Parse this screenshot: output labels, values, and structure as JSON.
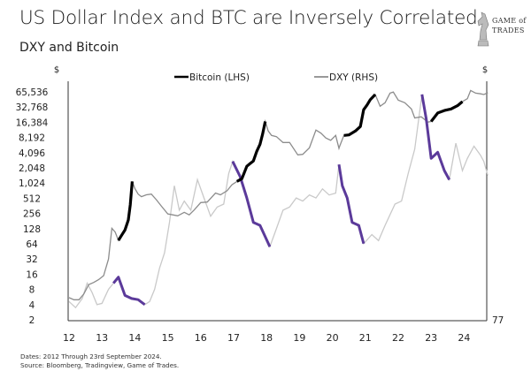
{
  "title": "US Dollar Index and BTC are Inversely Correlated",
  "subtitle": "DXY  and Bitcoin",
  "logo": {
    "line1": "GAME of",
    "line2": "TRADES"
  },
  "notes": [
    "Dates: 2012 Through 23rd September 2024.",
    "Source: Bloomberg, Tradingview, Game of Trades."
  ],
  "chart_data": {
    "type": "line",
    "left_axis": {
      "unit": "$",
      "scale": "log2",
      "ticks": [
        "2",
        "4",
        "8",
        "16",
        "32",
        "64",
        "128",
        "256",
        "512",
        "1,024",
        "2,048",
        "4,096",
        "8,192",
        "16,384",
        "32,768",
        "65,536"
      ],
      "tick_values": [
        2,
        4,
        8,
        16,
        32,
        64,
        128,
        256,
        512,
        1024,
        2048,
        4096,
        8192,
        16384,
        32768,
        65536
      ]
    },
    "right_axis": {
      "unit": "$",
      "ticks": [
        "77"
      ],
      "range": [
        77,
        115
      ]
    },
    "x_axis": {
      "ticks": [
        "12",
        "13",
        "14",
        "15",
        "16",
        "17",
        "18",
        "19",
        "20",
        "21",
        "22",
        "23",
        "24"
      ],
      "range": [
        2012,
        2024.73
      ]
    },
    "grid": false,
    "legend_placement": "top",
    "colors": {
      "bitcoin": "#8c8c8c",
      "bitcoin_highlight": "#000000",
      "dxy": "#c9c9c9",
      "dxy_highlight": "#5b3a9a"
    },
    "series": [
      {
        "name": "Bitcoin (LHS)",
        "axis": "left",
        "x": [
          2012.0,
          2012.15,
          2012.3,
          2012.45,
          2012.6,
          2012.75,
          2012.9,
          2013.05,
          2013.2,
          2013.3,
          2013.4,
          2013.5,
          2013.6,
          2013.7,
          2013.8,
          2013.86,
          2013.92,
          2014.0,
          2014.1,
          2014.2,
          2014.35,
          2014.5,
          2014.65,
          2014.8,
          2015.0,
          2015.15,
          2015.3,
          2015.5,
          2015.65,
          2015.8,
          2016.0,
          2016.2,
          2016.45,
          2016.6,
          2016.8,
          2016.95,
          2017.1,
          2017.25,
          2017.4,
          2017.5,
          2017.6,
          2017.7,
          2017.8,
          2017.88,
          2017.96,
          2018.05,
          2018.15,
          2018.3,
          2018.5,
          2018.7,
          2018.95,
          2019.1,
          2019.3,
          2019.5,
          2019.65,
          2019.8,
          2019.95,
          2020.1,
          2020.2,
          2020.22,
          2020.35,
          2020.5,
          2020.7,
          2020.85,
          2020.95,
          2021.05,
          2021.15,
          2021.3,
          2021.45,
          2021.6,
          2021.75,
          2021.85,
          2022.0,
          2022.2,
          2022.4,
          2022.5,
          2022.7,
          2022.9,
          2023.0,
          2023.2,
          2023.4,
          2023.6,
          2023.8,
          2023.95,
          2024.1,
          2024.2,
          2024.35,
          2024.5,
          2024.6,
          2024.72
        ],
        "values": [
          5.5,
          5,
          5,
          6.5,
          10,
          11,
          12.5,
          15,
          32,
          130,
          110,
          75,
          95,
          120,
          190,
          380,
          1100,
          800,
          620,
          550,
          600,
          620,
          480,
          360,
          250,
          240,
          230,
          270,
          240,
          300,
          420,
          430,
          650,
          600,
          720,
          950,
          1100,
          1250,
          2200,
          2500,
          2800,
          4300,
          6000,
          9500,
          17000,
          11000,
          9000,
          8500,
          6500,
          6500,
          3700,
          3800,
          5100,
          11500,
          10000,
          8000,
          7200,
          9000,
          5000,
          5500,
          9000,
          9200,
          11000,
          13500,
          29000,
          36000,
          46000,
          58000,
          34000,
          40000,
          62000,
          65000,
          45000,
          40000,
          30000,
          20000,
          21000,
          16500,
          17000,
          25000,
          28000,
          30000,
          35000,
          42000,
          48000,
          70000,
          62000,
          60000,
          58000,
          63000
        ]
      },
      {
        "name": "DXY (RHS)",
        "axis": "right",
        "x": [
          2012.0,
          2012.2,
          2012.4,
          2012.55,
          2012.7,
          2012.85,
          2013.0,
          2013.2,
          2013.35,
          2013.5,
          2013.7,
          2013.9,
          2014.1,
          2014.3,
          2014.45,
          2014.6,
          2014.75,
          2014.9,
          2015.05,
          2015.2,
          2015.35,
          2015.5,
          2015.7,
          2015.9,
          2016.1,
          2016.3,
          2016.5,
          2016.7,
          2016.85,
          2016.97,
          2017.2,
          2017.4,
          2017.6,
          2017.8,
          2018.1,
          2018.3,
          2018.5,
          2018.7,
          2018.9,
          2019.1,
          2019.3,
          2019.5,
          2019.7,
          2019.9,
          2020.1,
          2020.2,
          2020.3,
          2020.45,
          2020.6,
          2020.8,
          2020.95,
          2021.2,
          2021.4,
          2021.6,
          2021.9,
          2022.1,
          2022.3,
          2022.5,
          2022.72,
          2022.85,
          2023.0,
          2023.2,
          2023.4,
          2023.55,
          2023.75,
          2023.95,
          2024.1,
          2024.3,
          2024.5,
          2024.6,
          2024.72
        ],
        "values": [
          80,
          79,
          80.5,
          83,
          81.5,
          79.5,
          79.7,
          82,
          83,
          84,
          81,
          80.5,
          80.3,
          79.5,
          80,
          82,
          85.5,
          88,
          93,
          99,
          95,
          96.5,
          95,
          100,
          97,
          94,
          95.5,
          96,
          101,
          103,
          100.5,
          97,
          93,
          92.5,
          89,
          92,
          95,
          95.5,
          97,
          96.5,
          97.5,
          97,
          98.5,
          97.5,
          97.8,
          102.5,
          99,
          97,
          93,
          92.5,
          89.5,
          91,
          90,
          92.5,
          96,
          96.5,
          101,
          105,
          114,
          110,
          103.5,
          104.5,
          101.5,
          100,
          106,
          101.5,
          103.5,
          105.5,
          104,
          103,
          100.7
        ]
      }
    ],
    "highlights": {
      "bitcoin": [
        [
          2013.5,
          2013.92
        ],
        [
          2017.0,
          2017.96
        ],
        [
          2020.3,
          2021.3
        ],
        [
          2022.95,
          2024.0
        ]
      ],
      "dxy": [
        [
          2013.35,
          2014.3
        ],
        [
          2016.97,
          2018.1
        ],
        [
          2020.2,
          2020.95
        ],
        [
          2022.72,
          2023.55
        ]
      ]
    }
  }
}
